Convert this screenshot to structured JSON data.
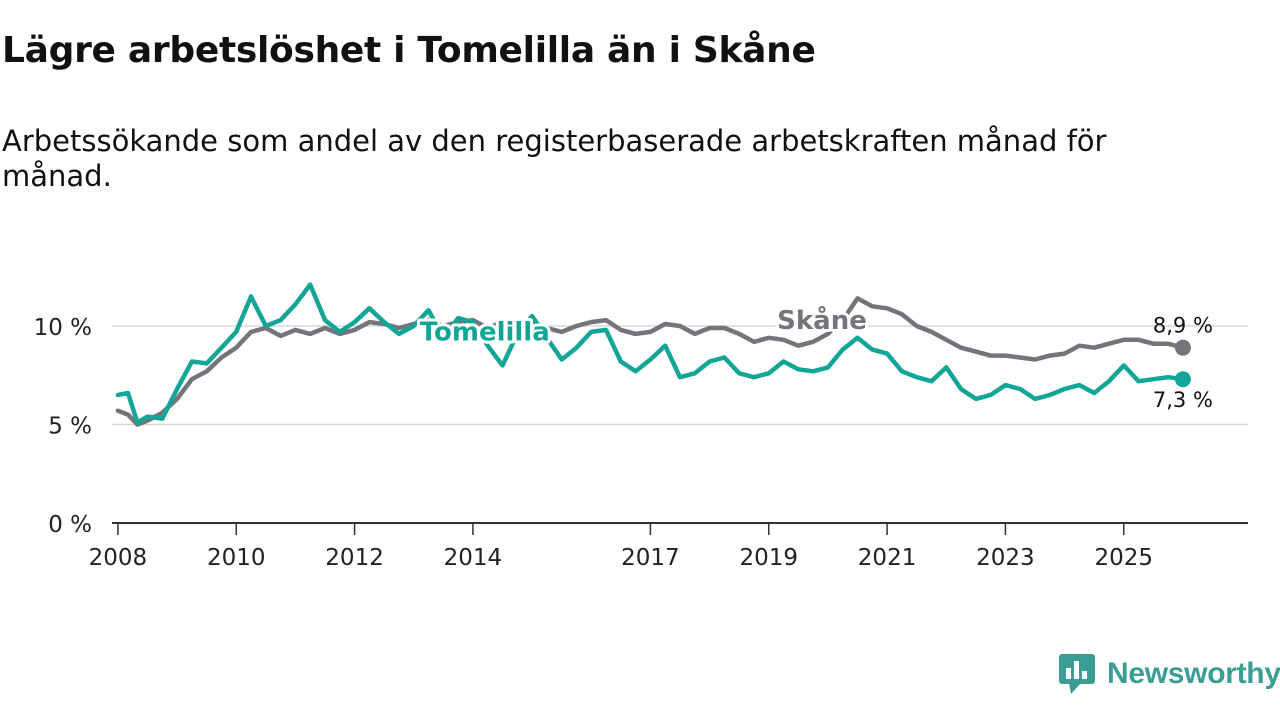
{
  "header": {
    "title": "Lägre arbetslöshet i Tomelilla än i Skåne",
    "subtitle": "Arbetssökande som andel av den registerbaserade arbetskraften månad för månad."
  },
  "brand": {
    "name": "Newsworthy",
    "color": "#3a9e94"
  },
  "chart_data": {
    "type": "line",
    "title": "Lägre arbetslöshet i Tomelilla än i Skåne",
    "subtitle": "Arbetssökande som andel av den registerbaserade arbetskraften månad för månad.",
    "xlabel": "",
    "ylabel": "",
    "xlim": [
      2007.9,
      2027.1
    ],
    "ylim": [
      0,
      12.5
    ],
    "x_ticks": [
      2008,
      2010,
      2012,
      2014,
      2017,
      2019,
      2021,
      2023,
      2025
    ],
    "x_tick_labels": [
      "2008",
      "2010",
      "2012",
      "2014",
      "2017",
      "2019",
      "2021",
      "2023",
      "2025"
    ],
    "y_ticks": [
      0,
      5,
      10
    ],
    "y_tick_labels": [
      "0 %",
      "5 %",
      "10 %"
    ],
    "grid": "horizontal",
    "legend": "direct labels on lines",
    "series": [
      {
        "name": "Skåne",
        "color": "#77737a",
        "end_label": "8,9 %",
        "points": [
          [
            2008.0,
            5.7
          ],
          [
            2008.17,
            5.5
          ],
          [
            2008.33,
            5.0
          ],
          [
            2008.5,
            5.2
          ],
          [
            2008.75,
            5.6
          ],
          [
            2009.0,
            6.3
          ],
          [
            2009.25,
            7.3
          ],
          [
            2009.5,
            7.7
          ],
          [
            2009.75,
            8.4
          ],
          [
            2010.0,
            8.9
          ],
          [
            2010.25,
            9.7
          ],
          [
            2010.5,
            9.9
          ],
          [
            2010.75,
            9.5
          ],
          [
            2011.0,
            9.8
          ],
          [
            2011.25,
            9.6
          ],
          [
            2011.5,
            9.9
          ],
          [
            2011.75,
            9.6
          ],
          [
            2012.0,
            9.8
          ],
          [
            2012.25,
            10.2
          ],
          [
            2012.5,
            10.1
          ],
          [
            2012.75,
            9.9
          ],
          [
            2013.0,
            10.1
          ],
          [
            2013.25,
            10.3
          ],
          [
            2013.5,
            10.0
          ],
          [
            2013.75,
            10.2
          ],
          [
            2014.0,
            10.3
          ],
          [
            2014.25,
            9.9
          ],
          [
            2014.5,
            10.2
          ],
          [
            2014.75,
            10.0
          ],
          [
            2015.0,
            10.2
          ],
          [
            2015.25,
            9.9
          ],
          [
            2015.5,
            9.7
          ],
          [
            2015.75,
            10.0
          ],
          [
            2016.0,
            10.2
          ],
          [
            2016.25,
            10.3
          ],
          [
            2016.5,
            9.8
          ],
          [
            2016.75,
            9.6
          ],
          [
            2017.0,
            9.7
          ],
          [
            2017.25,
            10.1
          ],
          [
            2017.5,
            10.0
          ],
          [
            2017.75,
            9.6
          ],
          [
            2018.0,
            9.9
          ],
          [
            2018.25,
            9.9
          ],
          [
            2018.5,
            9.6
          ],
          [
            2018.75,
            9.2
          ],
          [
            2019.0,
            9.4
          ],
          [
            2019.25,
            9.3
          ],
          [
            2019.5,
            9.0
          ],
          [
            2019.75,
            9.2
          ],
          [
            2020.0,
            9.6
          ],
          [
            2020.25,
            10.3
          ],
          [
            2020.5,
            11.4
          ],
          [
            2020.75,
            11.0
          ],
          [
            2021.0,
            10.9
          ],
          [
            2021.25,
            10.6
          ],
          [
            2021.5,
            10.0
          ],
          [
            2021.75,
            9.7
          ],
          [
            2022.0,
            9.3
          ],
          [
            2022.25,
            8.9
          ],
          [
            2022.5,
            8.7
          ],
          [
            2022.75,
            8.5
          ],
          [
            2023.0,
            8.5
          ],
          [
            2023.25,
            8.4
          ],
          [
            2023.5,
            8.3
          ],
          [
            2023.75,
            8.5
          ],
          [
            2024.0,
            8.6
          ],
          [
            2024.25,
            9.0
          ],
          [
            2024.5,
            8.9
          ],
          [
            2024.75,
            9.1
          ],
          [
            2025.0,
            9.3
          ],
          [
            2025.25,
            9.3
          ],
          [
            2025.5,
            9.1
          ],
          [
            2025.75,
            9.1
          ],
          [
            2026.0,
            8.9
          ]
        ]
      },
      {
        "name": "Tomelilla",
        "color": "#13a696",
        "end_label": "7,3 %",
        "points": [
          [
            2008.0,
            6.5
          ],
          [
            2008.17,
            6.6
          ],
          [
            2008.33,
            5.1
          ],
          [
            2008.5,
            5.4
          ],
          [
            2008.75,
            5.3
          ],
          [
            2009.0,
            6.8
          ],
          [
            2009.25,
            8.2
          ],
          [
            2009.5,
            8.1
          ],
          [
            2009.75,
            8.9
          ],
          [
            2010.0,
            9.7
          ],
          [
            2010.25,
            11.5
          ],
          [
            2010.5,
            10.0
          ],
          [
            2010.75,
            10.3
          ],
          [
            2011.0,
            11.1
          ],
          [
            2011.25,
            12.1
          ],
          [
            2011.5,
            10.3
          ],
          [
            2011.75,
            9.7
          ],
          [
            2012.0,
            10.2
          ],
          [
            2012.25,
            10.9
          ],
          [
            2012.5,
            10.2
          ],
          [
            2012.75,
            9.6
          ],
          [
            2013.0,
            10.0
          ],
          [
            2013.25,
            10.8
          ],
          [
            2013.5,
            9.4
          ],
          [
            2013.75,
            10.4
          ],
          [
            2014.0,
            10.2
          ],
          [
            2014.25,
            9.0
          ],
          [
            2014.5,
            8.0
          ],
          [
            2014.75,
            9.6
          ],
          [
            2015.0,
            10.5
          ],
          [
            2015.25,
            9.4
          ],
          [
            2015.5,
            8.3
          ],
          [
            2015.75,
            8.9
          ],
          [
            2016.0,
            9.7
          ],
          [
            2016.25,
            9.8
          ],
          [
            2016.5,
            8.2
          ],
          [
            2016.75,
            7.7
          ],
          [
            2017.0,
            8.3
          ],
          [
            2017.25,
            9.0
          ],
          [
            2017.5,
            7.4
          ],
          [
            2017.75,
            7.6
          ],
          [
            2018.0,
            8.2
          ],
          [
            2018.25,
            8.4
          ],
          [
            2018.5,
            7.6
          ],
          [
            2018.75,
            7.4
          ],
          [
            2019.0,
            7.6
          ],
          [
            2019.25,
            8.2
          ],
          [
            2019.5,
            7.8
          ],
          [
            2019.75,
            7.7
          ],
          [
            2020.0,
            7.9
          ],
          [
            2020.25,
            8.8
          ],
          [
            2020.5,
            9.4
          ],
          [
            2020.75,
            8.8
          ],
          [
            2021.0,
            8.6
          ],
          [
            2021.25,
            7.7
          ],
          [
            2021.5,
            7.4
          ],
          [
            2021.75,
            7.2
          ],
          [
            2022.0,
            7.9
          ],
          [
            2022.25,
            6.8
          ],
          [
            2022.5,
            6.3
          ],
          [
            2022.75,
            6.5
          ],
          [
            2023.0,
            7.0
          ],
          [
            2023.25,
            6.8
          ],
          [
            2023.5,
            6.3
          ],
          [
            2023.75,
            6.5
          ],
          [
            2024.0,
            6.8
          ],
          [
            2024.25,
            7.0
          ],
          [
            2024.5,
            6.6
          ],
          [
            2024.75,
            7.2
          ],
          [
            2025.0,
            8.0
          ],
          [
            2025.25,
            7.2
          ],
          [
            2025.5,
            7.3
          ],
          [
            2025.75,
            7.4
          ],
          [
            2026.0,
            7.3
          ]
        ]
      }
    ],
    "annotations": [
      {
        "text": "Tomelilla",
        "series": "Tomelilla",
        "x": 2014.2
      },
      {
        "text": "Skåne",
        "series": "Skåne",
        "x": 2019.9
      }
    ]
  }
}
